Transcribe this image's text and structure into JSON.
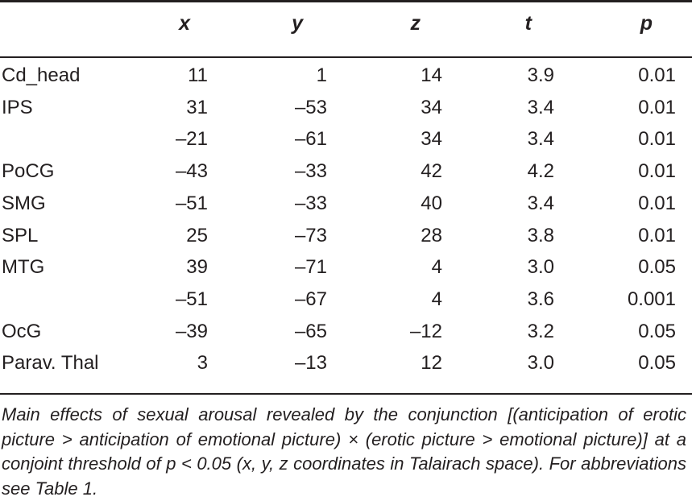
{
  "table": {
    "headers": {
      "region": "",
      "x": "x",
      "y": "y",
      "z": "z",
      "t": "t",
      "p": "p"
    },
    "rows": [
      {
        "region": "Cd_head",
        "x": "11",
        "y": "1",
        "z": "14",
        "t": "3.9",
        "p": "0.01"
      },
      {
        "region": "IPS",
        "x": "31",
        "y": "–53",
        "z": "34",
        "t": "3.4",
        "p": "0.01"
      },
      {
        "region": "",
        "x": "–21",
        "y": "–61",
        "z": "34",
        "t": "3.4",
        "p": "0.01"
      },
      {
        "region": "PoCG",
        "x": "–43",
        "y": "–33",
        "z": "42",
        "t": "4.2",
        "p": "0.01"
      },
      {
        "region": "SMG",
        "x": "–51",
        "y": "–33",
        "z": "40",
        "t": "3.4",
        "p": "0.01"
      },
      {
        "region": "SPL",
        "x": "25",
        "y": "–73",
        "z": "28",
        "t": "3.8",
        "p": "0.01"
      },
      {
        "region": "MTG",
        "x": "39",
        "y": "–71",
        "z": "4",
        "t": "3.0",
        "p": "0.05"
      },
      {
        "region": "",
        "x": "–51",
        "y": "–67",
        "z": "4",
        "t": "3.6",
        "p": "0.001"
      },
      {
        "region": "OcG",
        "x": "–39",
        "y": "–65",
        "z": "–12",
        "t": "3.2",
        "p": "0.05"
      },
      {
        "region": "Parav. Thal",
        "x": "3",
        "y": "–13",
        "z": "12",
        "t": "3.0",
        "p": "0.05"
      }
    ]
  },
  "caption": "Main effects of sexual arousal revealed by the conjunction [(anticipation of erotic picture > anticipation of emotional picture) × (erotic picture > emotional picture)] at a conjoint threshold of p < 0.05 (x, y, z coordinates in Talairach space). For abbreviations see Table 1."
}
